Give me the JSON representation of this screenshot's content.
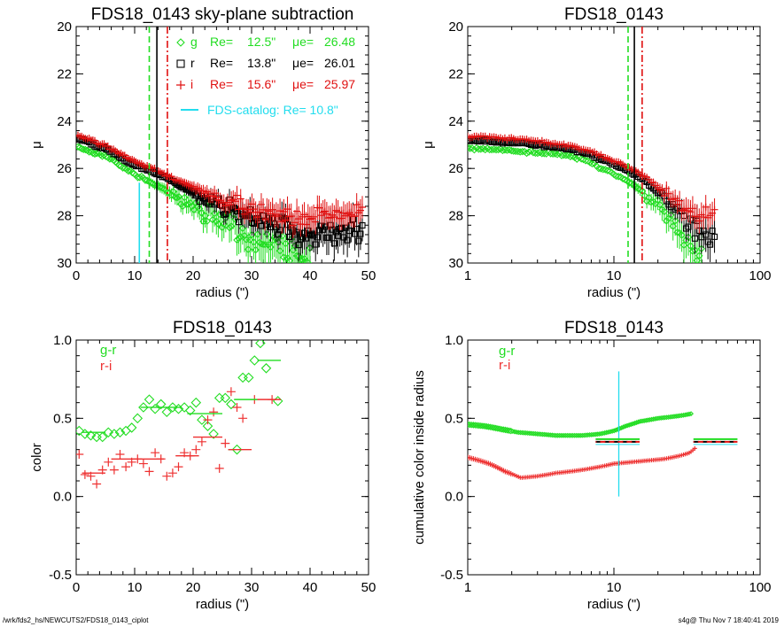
{
  "footer": {
    "left": "/wrk/fds2_hs/NEWCUTS2/FDS18_0143_ciplot",
    "right": "s4g@  Thu Nov  7 18:40:41 2019"
  },
  "colors": {
    "g": "#22dd22",
    "r": "#000000",
    "i": "#e01010",
    "catalog": "#22ddee",
    "rcolor": "#ee3030"
  },
  "chart_data": [
    {
      "type": "scatter",
      "title": "FDS18_0143 sky-plane subtraction",
      "xlabel": "radius (\")",
      "ylabel": "μ",
      "xlim": [
        0,
        50
      ],
      "ylim": [
        30,
        20
      ],
      "xticks": [
        0,
        10,
        20,
        30,
        40,
        50
      ],
      "yticks": [
        20,
        22,
        24,
        26,
        28,
        30
      ],
      "legend": [
        {
          "band": "g",
          "re_label": "Re=",
          "re": "12.5\"",
          "mu_label": "μe=",
          "mu": "26.48",
          "marker": "diamond"
        },
        {
          "band": "r",
          "re_label": "Re=",
          "re": "13.8\"",
          "mu_label": "μe=",
          "mu": "26.01",
          "marker": "square"
        },
        {
          "band": "i",
          "re_label": "Re=",
          "re": "15.6\"",
          "mu_label": "μe=",
          "mu": "25.97",
          "marker": "plus"
        }
      ],
      "catalog_label": "FDS-catalog: Re=  10.8\"",
      "vlines": [
        {
          "x": 10.8,
          "style": "solid",
          "color": "catalog",
          "y_from": 26.6
        },
        {
          "x": 12.5,
          "style": "dashed",
          "color": "g"
        },
        {
          "x": 13.8,
          "style": "solid",
          "color": "r"
        },
        {
          "x": 15.6,
          "style": "dashdot",
          "color": "i"
        }
      ],
      "profiles": {
        "g": [
          [
            0.5,
            25.1
          ],
          [
            2,
            25.25
          ],
          [
            4,
            25.4
          ],
          [
            6,
            25.6
          ],
          [
            8,
            25.95
          ],
          [
            10,
            26.25
          ],
          [
            12,
            26.5
          ],
          [
            14,
            26.75
          ],
          [
            16,
            27.0
          ],
          [
            18,
            27.3
          ],
          [
            20,
            27.6
          ],
          [
            22,
            27.9
          ],
          [
            24,
            28.15
          ],
          [
            26,
            28.4
          ],
          [
            28,
            28.6
          ],
          [
            30,
            28.85
          ],
          [
            32,
            29.0
          ],
          [
            34,
            29.2
          ],
          [
            36,
            29.4
          ],
          [
            38,
            29.6
          ],
          [
            40,
            29.7
          ]
        ],
        "r": [
          [
            0.5,
            24.75
          ],
          [
            2,
            24.9
          ],
          [
            4,
            25.1
          ],
          [
            6,
            25.3
          ],
          [
            8,
            25.6
          ],
          [
            10,
            25.85
          ],
          [
            12,
            26.05
          ],
          [
            14,
            26.25
          ],
          [
            16,
            26.5
          ],
          [
            18,
            26.75
          ],
          [
            20,
            27.0
          ],
          [
            22,
            27.25
          ],
          [
            24,
            27.5
          ],
          [
            26,
            27.7
          ],
          [
            28,
            27.9
          ],
          [
            30,
            28.05
          ],
          [
            32,
            28.25
          ],
          [
            34,
            28.4
          ],
          [
            36,
            28.55
          ],
          [
            40,
            28.75
          ],
          [
            45,
            28.9
          ],
          [
            49,
            28.6
          ]
        ],
        "i": [
          [
            0.5,
            24.6
          ],
          [
            2,
            24.75
          ],
          [
            4,
            24.95
          ],
          [
            6,
            25.15
          ],
          [
            8,
            25.45
          ],
          [
            10,
            25.7
          ],
          [
            12,
            25.9
          ],
          [
            14,
            26.1
          ],
          [
            16,
            26.35
          ],
          [
            18,
            26.55
          ],
          [
            20,
            26.8
          ],
          [
            22,
            27.0
          ],
          [
            24,
            27.2
          ],
          [
            26,
            27.4
          ],
          [
            28,
            27.55
          ],
          [
            30,
            27.7
          ],
          [
            32,
            27.85
          ],
          [
            34,
            27.95
          ],
          [
            36,
            28.05
          ],
          [
            40,
            28.0
          ],
          [
            45,
            27.9
          ],
          [
            49,
            27.8
          ]
        ]
      }
    },
    {
      "type": "scatter",
      "title": "FDS18_0143",
      "xlabel": "radius (\")",
      "ylabel": "μ",
      "xscale": "log",
      "xlim": [
        1,
        100
      ],
      "ylim": [
        30,
        20
      ],
      "xticks": [
        1,
        10,
        100
      ],
      "yticks": [
        20,
        22,
        24,
        26,
        28,
        30
      ],
      "vlines": [
        {
          "x": 12.5,
          "style": "dashed",
          "color": "g"
        },
        {
          "x": 13.8,
          "style": "solid",
          "color": "r"
        },
        {
          "x": 15.6,
          "style": "dashdot",
          "color": "i"
        }
      ]
    },
    {
      "type": "scatter",
      "title": "FDS18_0143",
      "xlabel": "radius (\")",
      "ylabel": "color",
      "xlim": [
        0,
        50
      ],
      "ylim": [
        -0.5,
        1.0
      ],
      "xticks": [
        0,
        10,
        20,
        30,
        40,
        50
      ],
      "yticks": [
        -0.5,
        0.0,
        0.5,
        1.0
      ],
      "legend": [
        {
          "name": "g-r",
          "color": "g"
        },
        {
          "name": "r-i",
          "color": "rcolor"
        }
      ],
      "g_r_points": [
        [
          0.5,
          0.42
        ],
        [
          1.5,
          0.4
        ],
        [
          2.5,
          0.39
        ],
        [
          3.5,
          0.38
        ],
        [
          4.5,
          0.38
        ],
        [
          5.5,
          0.41
        ],
        [
          6.5,
          0.4
        ],
        [
          7.5,
          0.41
        ],
        [
          8.5,
          0.42
        ],
        [
          9.5,
          0.44
        ],
        [
          10.5,
          0.5
        ],
        [
          11.5,
          0.57
        ],
        [
          12.5,
          0.62
        ],
        [
          13.5,
          0.56
        ],
        [
          14.5,
          0.59
        ],
        [
          15.5,
          0.54
        ],
        [
          16.5,
          0.57
        ],
        [
          17.5,
          0.56
        ],
        [
          18.5,
          0.57
        ],
        [
          19.5,
          0.55
        ],
        [
          20.5,
          0.6
        ],
        [
          21.5,
          0.49
        ],
        [
          22.5,
          0.45
        ],
        [
          23.5,
          0.4
        ],
        [
          24.5,
          0.63
        ],
        [
          25.5,
          0.63
        ],
        [
          26.5,
          0.59
        ],
        [
          27.5,
          0.3
        ],
        [
          28.5,
          0.76
        ],
        [
          29.5,
          0.76
        ],
        [
          30.5,
          0.87
        ],
        [
          31.5,
          0.98
        ],
        [
          32.5,
          0.82
        ],
        [
          34.5,
          0.61
        ]
      ],
      "r_i_points": [
        [
          0.5,
          0.27
        ],
        [
          1.5,
          0.14
        ],
        [
          2.5,
          0.13
        ],
        [
          3.5,
          0.08
        ],
        [
          4.5,
          0.17
        ],
        [
          5.5,
          0.22
        ],
        [
          6.5,
          0.17
        ],
        [
          7.5,
          0.27
        ],
        [
          8.5,
          0.19
        ],
        [
          9.5,
          0.22
        ],
        [
          10.5,
          0.24
        ],
        [
          11.5,
          0.21
        ],
        [
          12.5,
          0.16
        ],
        [
          13.5,
          0.28
        ],
        [
          14.5,
          0.24
        ],
        [
          15.5,
          0.13
        ],
        [
          16.5,
          0.15
        ],
        [
          17.5,
          0.19
        ],
        [
          18.5,
          0.28
        ],
        [
          19.5,
          0.26
        ],
        [
          20.5,
          0.3
        ],
        [
          21.5,
          0.35
        ],
        [
          22.5,
          0.49
        ],
        [
          23.5,
          0.54
        ],
        [
          24.5,
          0.18
        ],
        [
          25.5,
          0.34
        ],
        [
          26.5,
          0.67
        ],
        [
          27.5,
          0.57
        ],
        [
          28.5,
          0.5
        ],
        [
          30.5,
          0.62
        ],
        [
          33.5,
          0.62
        ]
      ],
      "g_r_bins": [
        [
          1,
          5,
          0.41
        ],
        [
          11,
          18,
          0.57
        ],
        [
          19,
          25,
          0.53
        ],
        [
          27,
          31,
          0.62
        ],
        [
          31,
          35,
          0.87
        ],
        [
          26,
          27,
          0.3
        ]
      ],
      "r_i_bins": [
        [
          1,
          5,
          0.15
        ],
        [
          6,
          15,
          0.24
        ],
        [
          17,
          21,
          0.26
        ],
        [
          20,
          25,
          0.38
        ],
        [
          26,
          30,
          0.3
        ],
        [
          31,
          35,
          0.62
        ]
      ]
    },
    {
      "type": "scatter",
      "title": "FDS18_0143",
      "xlabel": "radius (\")",
      "ylabel": "cumulative color inside radius",
      "xscale": "log",
      "xlim": [
        1,
        100
      ],
      "ylim": [
        -0.5,
        1.0
      ],
      "xticks": [
        1,
        10,
        100
      ],
      "yticks": [
        -0.5,
        0.0,
        0.5,
        1.0
      ],
      "legend": [
        {
          "name": "g-r",
          "color": "g"
        },
        {
          "name": "r-i",
          "color": "rcolor"
        }
      ],
      "vlines": [
        {
          "x": 10.8,
          "style": "solid",
          "color": "catalog",
          "y_from": 0.0,
          "y_to": 0.8
        }
      ],
      "g_r_curve": [
        [
          1.0,
          0.46
        ],
        [
          1.3,
          0.45
        ],
        [
          1.7,
          0.43
        ],
        [
          2.2,
          0.41
        ],
        [
          3.0,
          0.4
        ],
        [
          4.0,
          0.39
        ],
        [
          6.0,
          0.39
        ],
        [
          8.0,
          0.4
        ],
        [
          10.0,
          0.42
        ],
        [
          12.0,
          0.45
        ],
        [
          15.0,
          0.48
        ],
        [
          20.0,
          0.5
        ],
        [
          25.0,
          0.51
        ],
        [
          30.0,
          0.52
        ],
        [
          34.0,
          0.53
        ]
      ],
      "r_i_curve": [
        [
          1.0,
          0.25
        ],
        [
          1.4,
          0.21
        ],
        [
          1.8,
          0.16
        ],
        [
          2.3,
          0.12
        ],
        [
          3.0,
          0.13
        ],
        [
          4.0,
          0.15
        ],
        [
          6.0,
          0.17
        ],
        [
          8.0,
          0.19
        ],
        [
          10.0,
          0.21
        ],
        [
          13.0,
          0.22
        ],
        [
          17.0,
          0.23
        ],
        [
          22.0,
          0.24
        ],
        [
          28.0,
          0.26
        ],
        [
          33.0,
          0.28
        ],
        [
          36.0,
          0.31
        ]
      ],
      "hbars": [
        {
          "x1": 7.5,
          "x2": 15.0,
          "y": 0.35
        },
        {
          "x1": 35,
          "x2": 70,
          "y": 0.35
        }
      ]
    }
  ]
}
